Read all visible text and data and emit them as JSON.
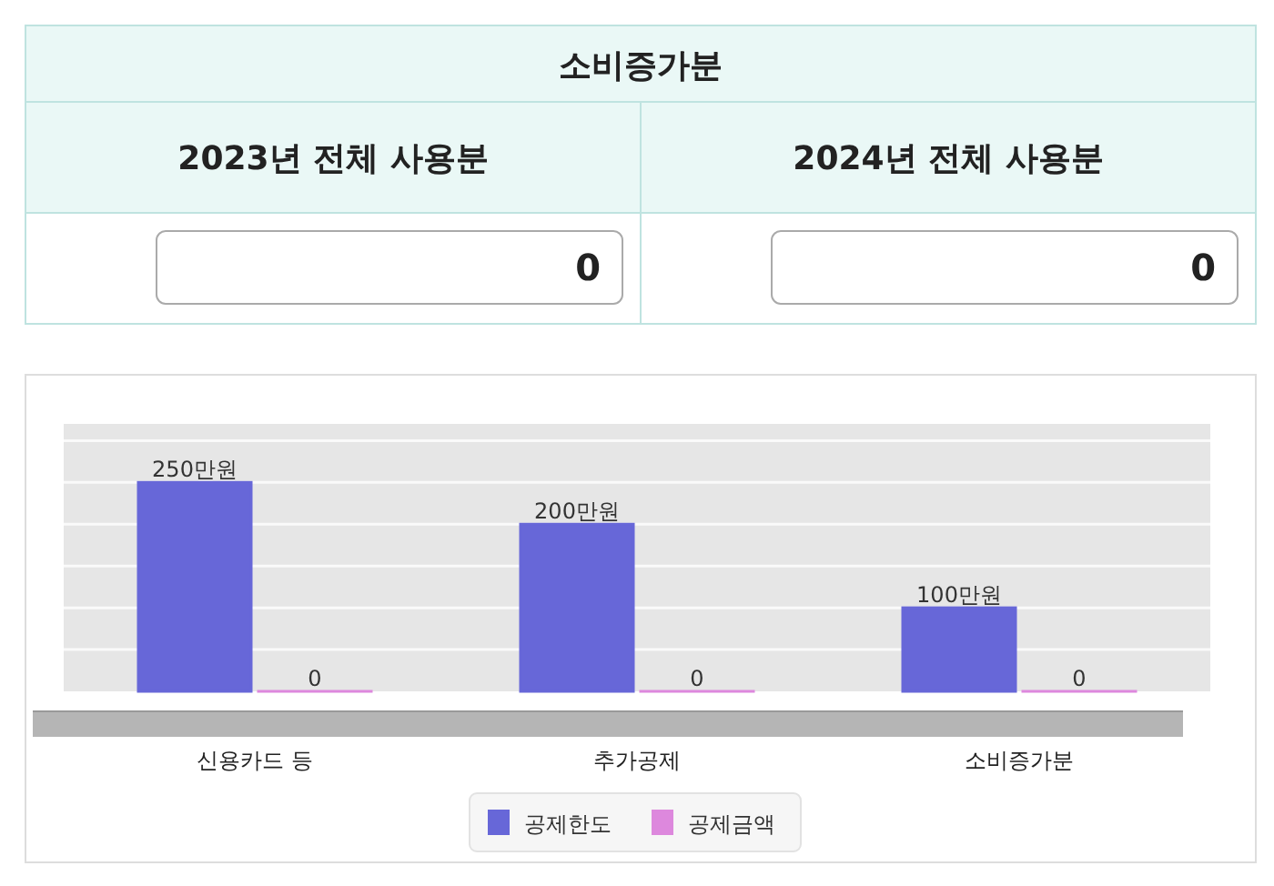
{
  "chart_data": [
    {
      "type": "other",
      "title": "소비증가분",
      "annotations": [
        "2023년 전체 사용분",
        "0",
        "2024년 전체 사용분",
        "0"
      ]
    },
    {
      "type": "bar",
      "categories": [
        "신용카드 등",
        "추가공제",
        "소비증가분"
      ],
      "ylim": [
        0,
        320
      ],
      "yticks": [
        {
          "value": 50,
          "label": null
        },
        {
          "value": 100,
          "label": null
        },
        {
          "value": 150,
          "label": null
        },
        {
          "value": 200,
          "label": null
        },
        {
          "value": 250,
          "label": null
        },
        {
          "value": 300,
          "label": null
        }
      ],
      "grid": "y",
      "legend": "bottom",
      "tick_labels": "x",
      "series": [
        {
          "name": "공제한도",
          "color": "#6767d8",
          "values": [
            250,
            200,
            100
          ],
          "value_labels": [
            "250만원",
            "200만원",
            "100만원"
          ]
        },
        {
          "name": "공제금액",
          "color": "#dd88dd",
          "values": [
            0,
            0,
            0
          ],
          "value_labels": [
            "0",
            "0",
            "0"
          ]
        }
      ]
    }
  ]
}
